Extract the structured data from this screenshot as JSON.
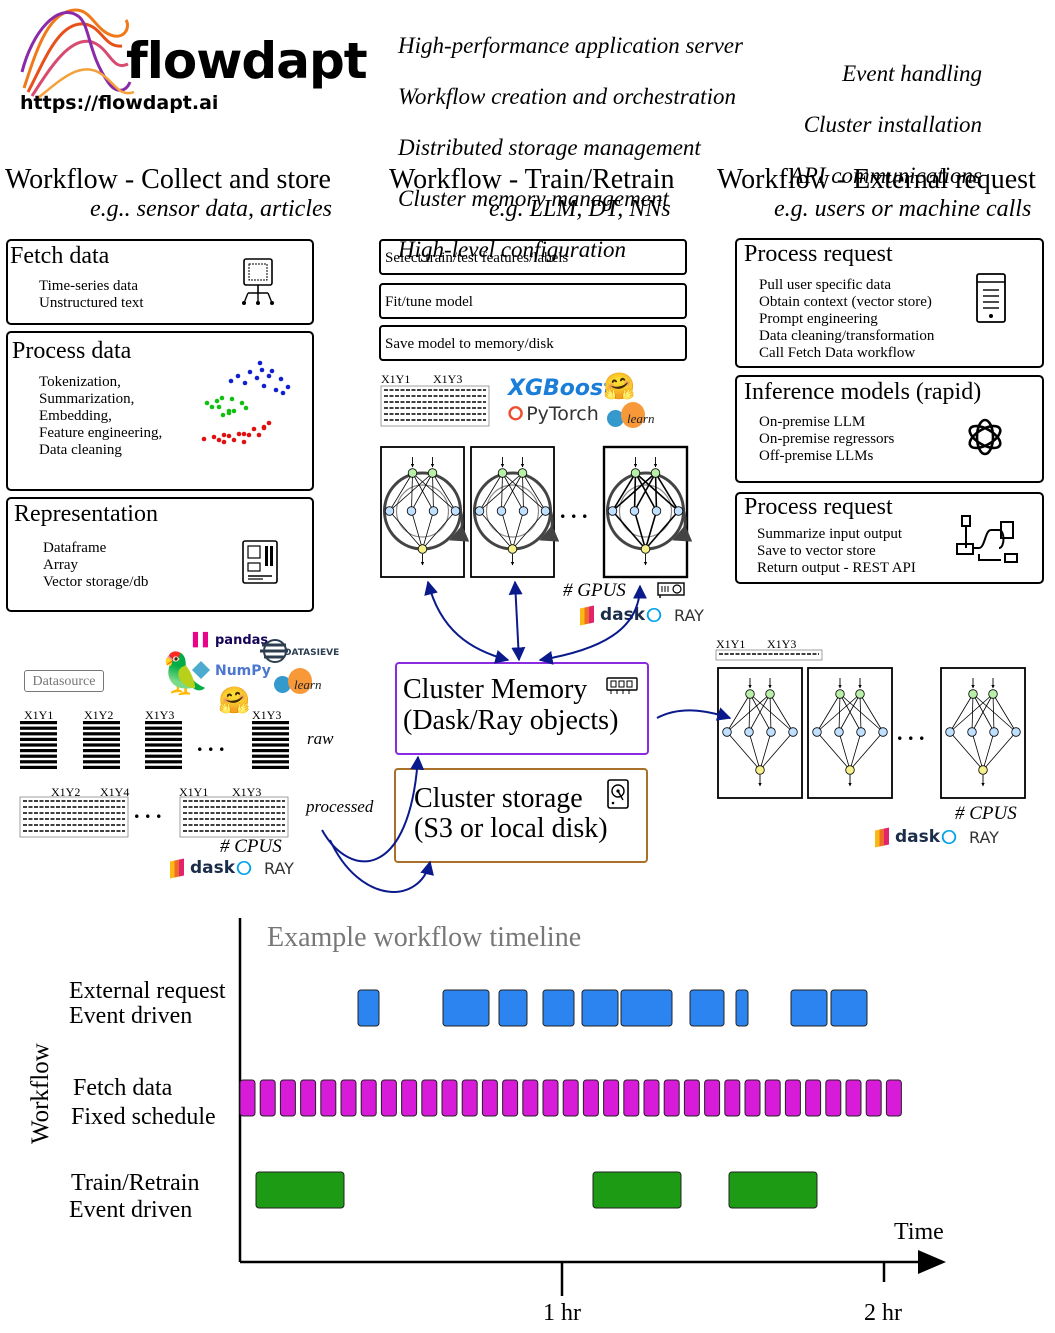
{
  "logo": {
    "name": "flowdapt",
    "url": "https://flowdapt.ai"
  },
  "features_left": [
    "High-performance application server",
    "Workflow creation and orchestration",
    "Distributed storage management",
    "Cluster memory management",
    "High-level configuration"
  ],
  "features_right": [
    "Event handling",
    "Cluster installation",
    "API communications"
  ],
  "columns": {
    "collect": {
      "title": "Workflow - Collect and store",
      "subtitle": "e.g.. sensor data, articles"
    },
    "train": {
      "title": "Workflow - Train/Retrain",
      "subtitle": "e.g. LLM, DT, NNs"
    },
    "external": {
      "title": "Workflow - External request",
      "subtitle": "e.g. users or machine calls"
    }
  },
  "collect_boxes": {
    "fetch": {
      "title": "Fetch data",
      "lines": "Time-series data\nUnstructured text"
    },
    "process": {
      "title": "Process data",
      "lines": "Tokenization,\nSummarization,\nEmbedding,\nFeature engineering,\nData cleaning"
    },
    "representation": {
      "title": "Representation",
      "lines": "Dataframe\nArray\nVector storage/db"
    }
  },
  "train_steps": [
    "Select train/test features/labels",
    "Fit/tune model",
    "Save model to memory/disk"
  ],
  "external_boxes": {
    "request1": {
      "title": "Process request",
      "lines": "Pull user specific data\nObtain context (vector store)\nPrompt engineering\nData cleaning/transformation\nCall Fetch Data workflow"
    },
    "inference": {
      "title": "Inference models (rapid)",
      "lines": "On-premise LLM\nOn-premise regressors\nOff-premise LLMs"
    },
    "request2": {
      "title": "Process request",
      "lines": "Summarize input output\nSave to vector store\nReturn output - REST API"
    }
  },
  "libraries": {
    "xgboost": "XGBoost",
    "pytorch": "PyTorch",
    "pandas": "pandas",
    "numpy": "NumPy",
    "datasieve": "DATASIEVE",
    "learn": "learn",
    "dask": "dask",
    "ray": "RAY"
  },
  "labels": {
    "datasource": "Datasource",
    "raw": "raw",
    "processed": "processed",
    "cpus": "# CPUS",
    "gpus": "# GPUS",
    "ellipsis": ". . .",
    "x1y1": "X1Y1",
    "x1y2": "X1Y2",
    "x1y3": "X1Y3",
    "x1y4": "X1Y4"
  },
  "cluster_memory": {
    "line1": "Cluster Memory",
    "line2": "(Dask/Ray objects)"
  },
  "cluster_storage": {
    "line1": "Cluster storage",
    "line2": "(S3 or local disk)"
  },
  "timeline": {
    "title": "Example workflow timeline",
    "y_axis_label": "Workflow",
    "x_axis_label": "Time",
    "ticks": [
      "1 hr",
      "2 hr"
    ],
    "rows": [
      {
        "line1": "External request",
        "line2": "Event driven",
        "color": "#2b84ef"
      },
      {
        "line1": "Fetch data",
        "line2": "Fixed schedule",
        "color": "#d81bd8"
      },
      {
        "line1": "Train/Retrain",
        "line2": "Event driven",
        "color": "#1e9b14"
      }
    ]
  },
  "colors": {
    "memory_border": "#8a2be2",
    "storage_border": "#a8702a",
    "arrow": "#0a1a8c",
    "logo_orange": "#f07a1a",
    "logo_purple": "#8a2aa8"
  }
}
